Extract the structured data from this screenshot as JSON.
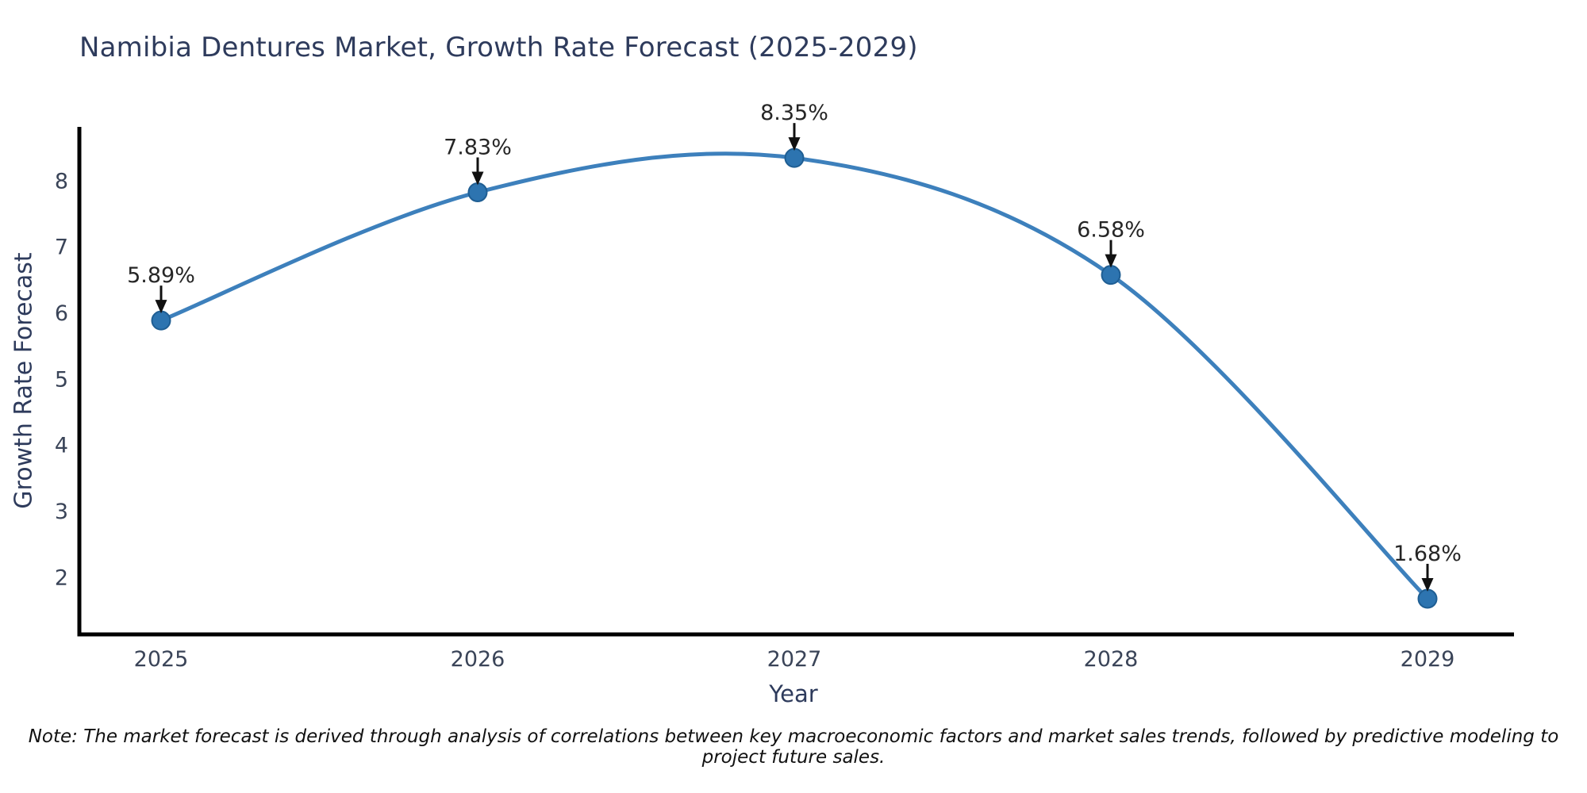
{
  "chart_data": {
    "type": "line",
    "title": "Namibia Dentures Market, Growth Rate Forecast (2025-2029)",
    "xlabel": "Year",
    "ylabel": "Growth Rate Forecast",
    "categories": [
      "2025",
      "2026",
      "2027",
      "2028",
      "2029"
    ],
    "values": [
      5.89,
      7.83,
      8.35,
      6.58,
      1.68
    ],
    "point_labels": [
      "5.89%",
      "7.83%",
      "8.35%",
      "6.58%",
      "1.68%"
    ],
    "yticks": [
      2,
      3,
      4,
      5,
      6,
      7,
      8
    ],
    "ylim": [
      1.14,
      8.82
    ],
    "grid": false,
    "legend": false,
    "smooth": true,
    "colors": {
      "line": "#3d80bc",
      "marker_fill": "#2d74b0",
      "marker_stroke": "#1f5e93",
      "axis": "#000000",
      "tick_label": "#3a4458",
      "annotation_text": "#262626",
      "annotation_arrow": "#111111",
      "title": "#2e3b5c"
    }
  },
  "note": {
    "text": "Note: The market forecast is derived through analysis of correlations between key macroeconomic factors and market sales trends, followed by predictive modeling to project future sales."
  }
}
